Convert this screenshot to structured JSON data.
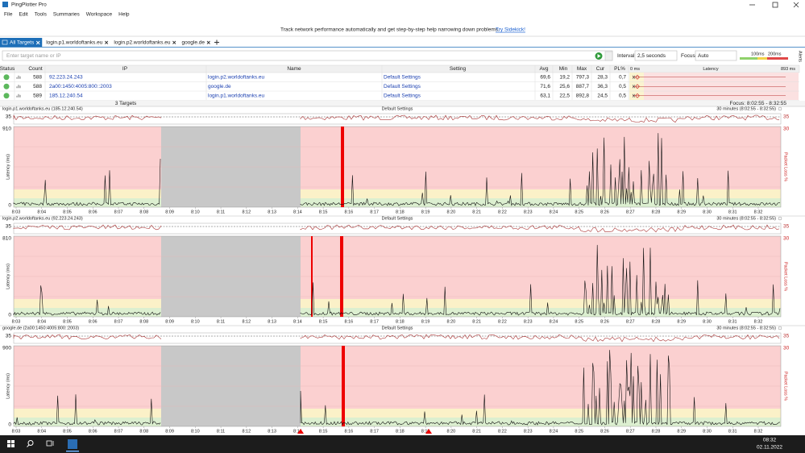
{
  "window": {
    "title": "PingPlotter Pro"
  },
  "menu": [
    "File",
    "Edit",
    "Tools",
    "Summaries",
    "Workspace",
    "Help"
  ],
  "banner": {
    "text": "Track network performance automatically and get step-by-step help narrowing down problems.",
    "link": "Try Sidekick!"
  },
  "tabs": [
    "All Targets",
    "login.p1.worldoftanks.eu",
    "login.p2.worldoftanks.eu",
    "google.de"
  ],
  "toolbar": {
    "placeholder": "Enter target name or IP",
    "interval_label": "Interval",
    "interval": "2,5 seconds",
    "focus_label": "Focus",
    "focus": "Auto",
    "scale": [
      "100ms",
      "200ms"
    ],
    "alerts": "Alerts"
  },
  "table": {
    "headers": [
      "Status",
      "Count",
      "IP",
      "Name",
      "Setting",
      "Avg",
      "Min",
      "Max",
      "Cur",
      "PL%",
      "0 ms",
      "Latency",
      "893 ms"
    ],
    "rows": [
      [
        "588",
        "92.223.24.243",
        "login.p2.worldoftanks.eu",
        "Default Settings",
        "69,6",
        "19,2",
        "797,3",
        "28,3",
        "0,7"
      ],
      [
        "588",
        "2a00:1450:4005:800::2003",
        "google.de",
        "Default Settings",
        "71,6",
        "25,6",
        "887,7",
        "36,3",
        "0,5"
      ],
      [
        "589",
        "185.12.240.54",
        "login.p1.worldoftanks.eu",
        "Default Settings",
        "63,1",
        "22,5",
        "892,8",
        "24,5",
        "0,5"
      ]
    ]
  },
  "summary": {
    "targets": "3 Targets",
    "focus": "Focus: 8:02:55 - 8:32:55"
  },
  "axis_labels": {
    "latency": "Latency (ms)",
    "loss": "Packet Loss %"
  },
  "time_ticks": [
    "8:03",
    "8:04",
    "8:05",
    "8:06",
    "8:07",
    "8:08",
    "8:09",
    "8:10",
    "8:11",
    "8:12",
    "8:13",
    "8:14",
    "8:15",
    "8:16",
    "8:17",
    "8:18",
    "8:19",
    "8:20",
    "8:21",
    "8:22",
    "8:23",
    "8:24",
    "8:25",
    "8:26",
    "8:27",
    "8:28",
    "8:29",
    "8:30",
    "8:31",
    "8:32"
  ],
  "panels": [
    {
      "title": "login.p1.worldoftanks.eu (185.12.240.54)",
      "setting": "Default Settings",
      "range": "30 minutes (8:02:55 - 8:32:55)",
      "strip_max": "35",
      "latency_max": "910",
      "latency_min": "0",
      "loss_max": "30"
    },
    {
      "title": "login.p2.worldoftanks.eu (92.223.24.243)",
      "setting": "Default Settings",
      "range": "30 minutes (8:02:55 - 8:32:55)",
      "strip_max": "35",
      "latency_max": "810",
      "latency_min": "0",
      "loss_max": "30"
    },
    {
      "title": "google.de (2a00:1450:4005:800::2003)",
      "setting": "Default Settings",
      "range": "30 minutes (8:02:55 - 8:32:55)",
      "strip_max": "35",
      "latency_max": "900",
      "latency_min": "0",
      "loss_max": "30"
    }
  ],
  "taskbar": {
    "time": "08:32",
    "date": "02.11.2022"
  }
}
